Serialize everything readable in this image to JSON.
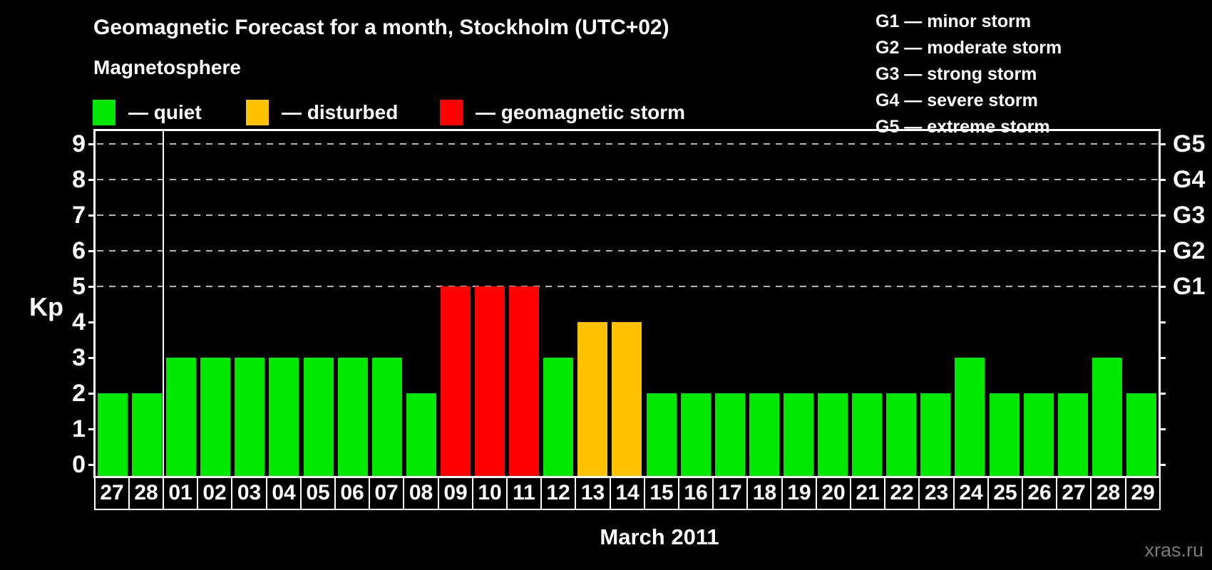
{
  "page": {
    "watermark": "xras.ru"
  },
  "legend": {
    "heading": "Magnetosphere",
    "items": [
      {
        "name": "quiet",
        "label": "— quiet",
        "color": "#00e800"
      },
      {
        "name": "disturbed",
        "label": "— disturbed",
        "color": "#ffc200"
      },
      {
        "name": "storm",
        "label": "— geomagnetic storm",
        "color": "#ff0000"
      }
    ]
  },
  "g_scale_legend": [
    {
      "label": "G1 — minor storm"
    },
    {
      "label": "G2 — moderate storm"
    },
    {
      "label": "G3 — strong storm"
    },
    {
      "label": "G4 — severe storm"
    },
    {
      "label": "G5 — extreme storm"
    }
  ],
  "chart_data": {
    "type": "bar",
    "title": "Geomagnetic Forecast for a month, Stockholm (UTC+02)",
    "subtitle": "Magnetosphere",
    "xlabel": "March 2011",
    "ylabel": "Kp",
    "ylim": [
      0,
      9
    ],
    "y_ticks": [
      0,
      1,
      2,
      3,
      4,
      5,
      6,
      7,
      8,
      9
    ],
    "grid": "horizontal dashed lines at Kp 5-9 only (G1-G5 levels)",
    "legend_position": "top",
    "right_axis_labels": [
      {
        "kp": 5,
        "label": "G1"
      },
      {
        "kp": 6,
        "label": "G2"
      },
      {
        "kp": 7,
        "label": "G3"
      },
      {
        "kp": 8,
        "label": "G4"
      },
      {
        "kp": 9,
        "label": "G5"
      }
    ],
    "categories": [
      "27",
      "28",
      "01",
      "02",
      "03",
      "04",
      "05",
      "06",
      "07",
      "08",
      "09",
      "10",
      "11",
      "12",
      "13",
      "14",
      "15",
      "16",
      "17",
      "18",
      "19",
      "20",
      "21",
      "22",
      "23",
      "24",
      "25",
      "26",
      "27",
      "28",
      "29"
    ],
    "values": [
      2,
      2,
      3,
      3,
      3,
      3,
      3,
      3,
      3,
      2,
      5,
      5,
      5,
      3,
      4,
      4,
      2,
      2,
      2,
      2,
      2,
      2,
      2,
      2,
      2,
      3,
      2,
      2,
      2,
      3,
      2
    ],
    "statuses": [
      "quiet",
      "quiet",
      "quiet",
      "quiet",
      "quiet",
      "quiet",
      "quiet",
      "quiet",
      "quiet",
      "quiet",
      "storm",
      "storm",
      "storm",
      "quiet",
      "disturbed",
      "disturbed",
      "quiet",
      "quiet",
      "quiet",
      "quiet",
      "quiet",
      "quiet",
      "quiet",
      "quiet",
      "quiet",
      "quiet",
      "quiet",
      "quiet",
      "quiet",
      "quiet",
      "quiet"
    ],
    "prev_month_trailing_days": 2,
    "month_separator_after": "28"
  }
}
